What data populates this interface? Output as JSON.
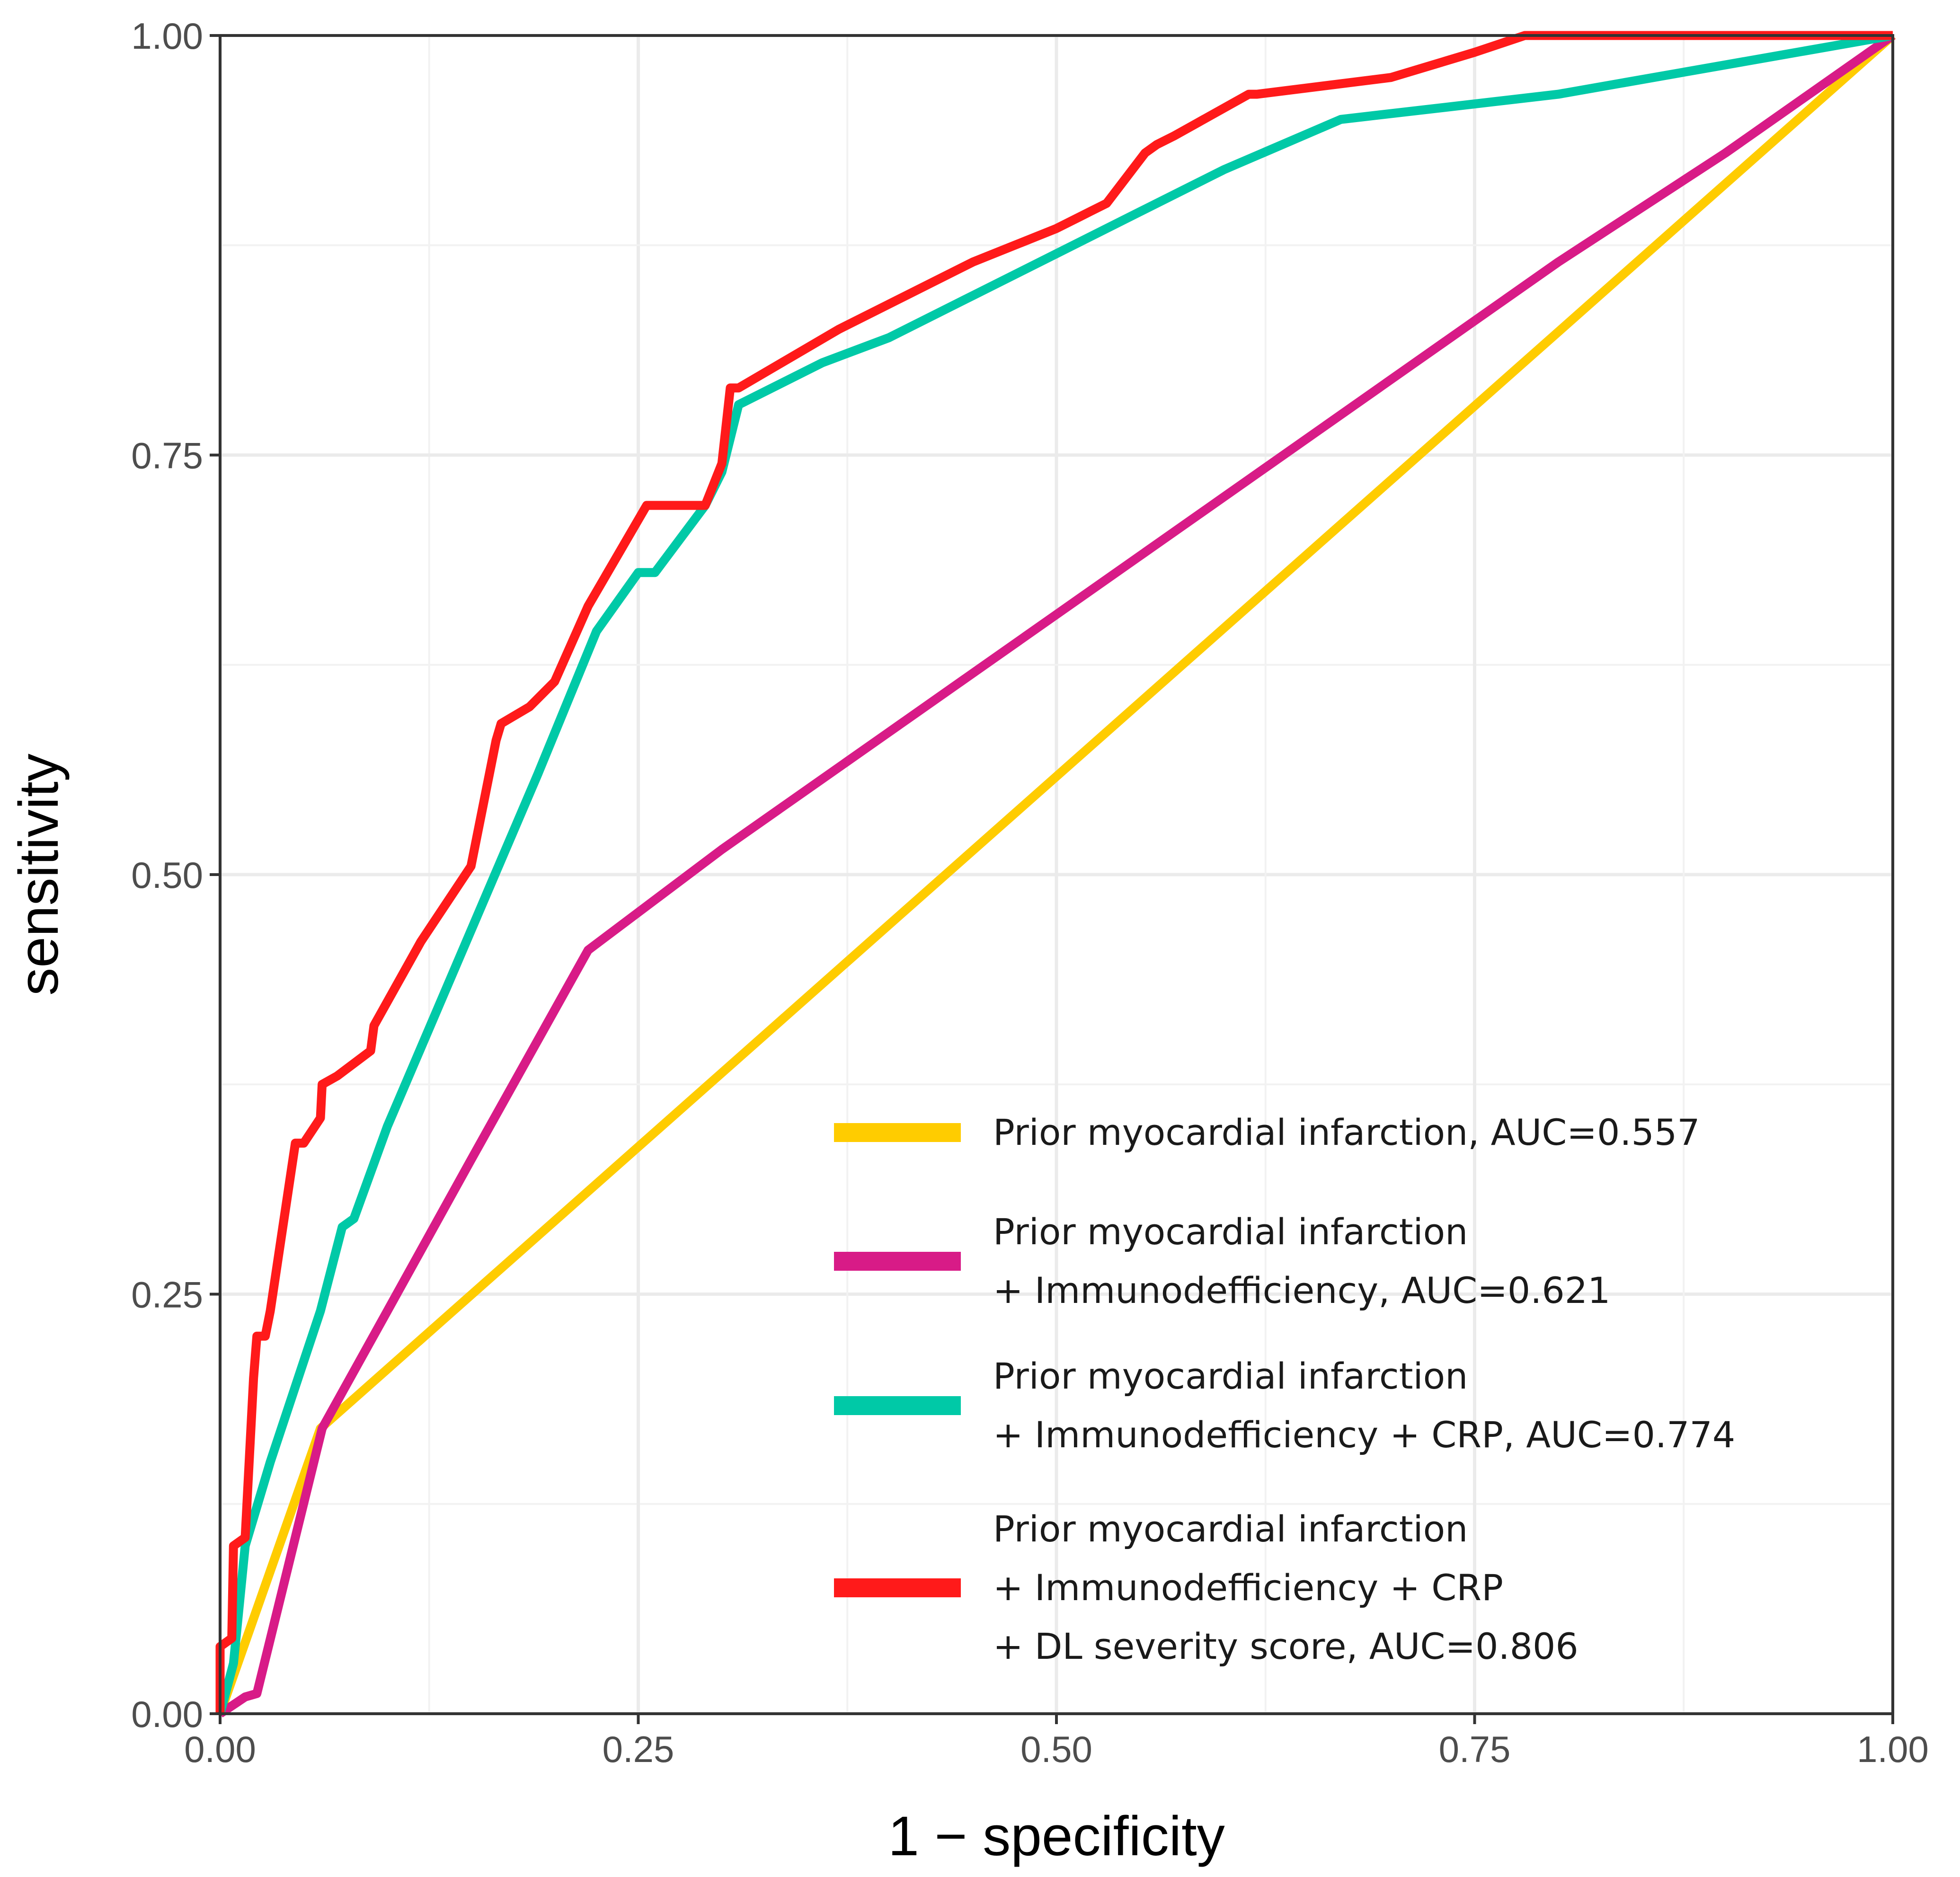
{
  "chart_data": {
    "type": "line",
    "title": "",
    "xlabel": "1 − specificity",
    "ylabel": "sensitivity",
    "xlim": [
      0,
      1
    ],
    "ylim": [
      0,
      1
    ],
    "xticks": [
      "0.00",
      "0.25",
      "0.50",
      "0.75",
      "1.00"
    ],
    "yticks": [
      "0.00",
      "0.25",
      "0.50",
      "0.75",
      "1.00"
    ],
    "grid": true,
    "legend_position": "bottom-right",
    "series": [
      {
        "name": "Prior myocardial infarction, AUC=0.557",
        "legend_lines": [
          "Prior myocardial infarction, AUC=0.557"
        ],
        "color": "#FFCC00",
        "points": [
          [
            0,
            0
          ],
          [
            0.06,
            0.17
          ],
          [
            1,
            1
          ]
        ]
      },
      {
        "name": "Prior myocardial infarction + Immunodefficiency, AUC=0.621",
        "legend_lines": [
          "Prior myocardial infarction",
          "+ Immunodefficiency, AUC=0.621"
        ],
        "color": "#D81B87",
        "points": [
          [
            0,
            0
          ],
          [
            0.015,
            0.01
          ],
          [
            0.022,
            0.012
          ],
          [
            0.061,
            0.17
          ],
          [
            0.1,
            0.24
          ],
          [
            0.15,
            0.33
          ],
          [
            0.22,
            0.455
          ],
          [
            0.3,
            0.515
          ],
          [
            0.4,
            0.585
          ],
          [
            0.5,
            0.655
          ],
          [
            0.6,
            0.725
          ],
          [
            0.7,
            0.795
          ],
          [
            0.8,
            0.865
          ],
          [
            0.9,
            0.93
          ],
          [
            1,
            1
          ]
        ]
      },
      {
        "name": "Prior myocardial infarction + Immunodefficiency + CRP, AUC=0.774",
        "legend_lines": [
          "Prior myocardial infarction",
          "+ Immunodefficiency  + CRP, AUC=0.774"
        ],
        "color": "#00C9A7",
        "points": [
          [
            0,
            0
          ],
          [
            0.008,
            0.03
          ],
          [
            0.015,
            0.1
          ],
          [
            0.03,
            0.15
          ],
          [
            0.06,
            0.24
          ],
          [
            0.073,
            0.29
          ],
          [
            0.08,
            0.295
          ],
          [
            0.1,
            0.35
          ],
          [
            0.13,
            0.42
          ],
          [
            0.16,
            0.49
          ],
          [
            0.19,
            0.56
          ],
          [
            0.225,
            0.645
          ],
          [
            0.25,
            0.68
          ],
          [
            0.26,
            0.68
          ],
          [
            0.29,
            0.72
          ],
          [
            0.3,
            0.74
          ],
          [
            0.31,
            0.78
          ],
          [
            0.36,
            0.805
          ],
          [
            0.4,
            0.82
          ],
          [
            0.45,
            0.845
          ],
          [
            0.5,
            0.87
          ],
          [
            0.55,
            0.895
          ],
          [
            0.6,
            0.92
          ],
          [
            0.67,
            0.95
          ],
          [
            0.8,
            0.965
          ],
          [
            1,
            1
          ]
        ]
      },
      {
        "name": "Prior myocardial infarction + Immunodefficiency + CRP + DL severity score, AUC=0.806",
        "legend_lines": [
          "Prior myocardial infarction",
          "+ Immunodefficiency  + CRP",
          "+ DL severity score, AUC=0.806"
        ],
        "color": "#FF1A1A",
        "points": [
          [
            0,
            0
          ],
          [
            0,
            0.04
          ],
          [
            0.007,
            0.045
          ],
          [
            0.008,
            0.1
          ],
          [
            0.015,
            0.105
          ],
          [
            0.02,
            0.2
          ],
          [
            0.022,
            0.225
          ],
          [
            0.027,
            0.225
          ],
          [
            0.03,
            0.24
          ],
          [
            0.045,
            0.34
          ],
          [
            0.05,
            0.34
          ],
          [
            0.06,
            0.355
          ],
          [
            0.061,
            0.375
          ],
          [
            0.07,
            0.38
          ],
          [
            0.09,
            0.395
          ],
          [
            0.092,
            0.41
          ],
          [
            0.12,
            0.46
          ],
          [
            0.15,
            0.505
          ],
          [
            0.165,
            0.58
          ],
          [
            0.168,
            0.59
          ],
          [
            0.185,
            0.6
          ],
          [
            0.2,
            0.615
          ],
          [
            0.22,
            0.66
          ],
          [
            0.255,
            0.72
          ],
          [
            0.29,
            0.72
          ],
          [
            0.3,
            0.745
          ],
          [
            0.305,
            0.79
          ],
          [
            0.31,
            0.79
          ],
          [
            0.37,
            0.825
          ],
          [
            0.4,
            0.84
          ],
          [
            0.45,
            0.865
          ],
          [
            0.5,
            0.885
          ],
          [
            0.52,
            0.895
          ],
          [
            0.53,
            0.9
          ],
          [
            0.553,
            0.93
          ],
          [
            0.56,
            0.935
          ],
          [
            0.57,
            0.94
          ],
          [
            0.615,
            0.965
          ],
          [
            0.62,
            0.965
          ],
          [
            0.7,
            0.975
          ],
          [
            0.75,
            0.99
          ],
          [
            0.78,
            1
          ],
          [
            1,
            1
          ]
        ]
      }
    ]
  }
}
